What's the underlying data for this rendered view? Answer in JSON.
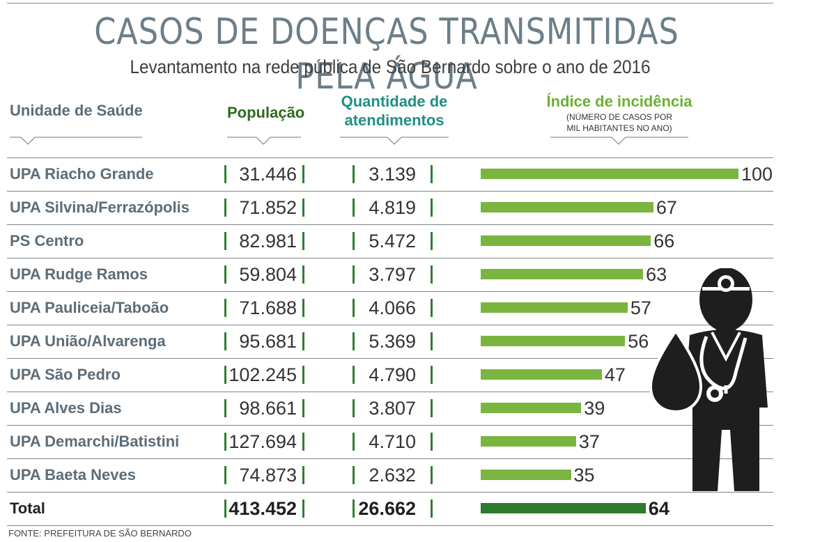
{
  "title": "CASOS DE DOENÇAS TRANSMITIDAS PELA ÁGUA",
  "subtitle": "Levantamento na rede pública de São Bernardo sobre o ano de 2016",
  "headers": {
    "unit": "Unidade de Saúde",
    "population": "População",
    "quantity_line1": "Quantidade de",
    "quantity_line2": "atendimentos",
    "index": "Índice de incidência",
    "index_note_line1": "(NÚMERO DE CASOS POR",
    "index_note_line2": "MIL HABITANTES NO ANO)"
  },
  "footer": "FONTE: PREFEITURA DE SÃO BERNARDO",
  "colors": {
    "bar": "#7ab540",
    "total_bar": "#2e7a2e",
    "population_header": "#2f6a1f",
    "quantity_header": "#1f8f83",
    "index_header": "#6ab033"
  },
  "icon": "doctor-with-water-drop-icon",
  "chart_data": {
    "type": "table",
    "title": "CASOS DE DOENÇAS TRANSMITIDAS PELA ÁGUA",
    "subtitle": "Levantamento na rede pública de São Bernardo sobre o ano de 2016",
    "columns": [
      "Unidade de Saúde",
      "População",
      "Quantidade de atendimentos",
      "Índice de incidência"
    ],
    "rows": [
      {
        "unit": "UPA Riacho Grande",
        "population": "31.446",
        "quantity": "3.139",
        "index": 100
      },
      {
        "unit": "UPA Silvina/Ferrazópolis",
        "population": "71.852",
        "quantity": "4.819",
        "index": 67
      },
      {
        "unit": "PS Centro",
        "population": "82.981",
        "quantity": "5.472",
        "index": 66
      },
      {
        "unit": "UPA Rudge Ramos",
        "population": "59.804",
        "quantity": "3.797",
        "index": 63
      },
      {
        "unit": "UPA Pauliceia/Taboão",
        "population": "71.688",
        "quantity": "4.066",
        "index": 57
      },
      {
        "unit": "UPA União/Alvarenga",
        "population": "95.681",
        "quantity": "5.369",
        "index": 56
      },
      {
        "unit": "UPA São Pedro",
        "population": "102.245",
        "quantity": "4.790",
        "index": 47
      },
      {
        "unit": "UPA Alves Dias",
        "population": "98.661",
        "quantity": "3.807",
        "index": 39
      },
      {
        "unit": "UPA Demarchi/Batistini",
        "population": "127.694",
        "quantity": "4.710",
        "index": 37
      },
      {
        "unit": "UPA Baeta Neves",
        "population": "74.873",
        "quantity": "2.632",
        "index": 35
      }
    ],
    "total": {
      "unit": "Total",
      "population": "413.452",
      "quantity": "26.662",
      "index": 64
    },
    "index_max": 100
  }
}
